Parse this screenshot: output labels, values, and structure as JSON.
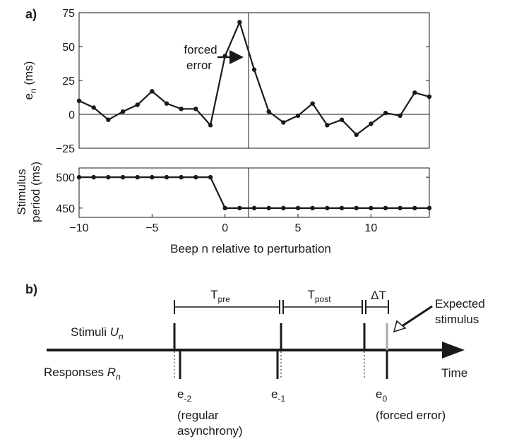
{
  "panel_a": {
    "label": "a)",
    "annotation_line1": "forced",
    "annotation_line2": "error"
  },
  "panel_b": {
    "label": "b)",
    "t_pre": "T",
    "t_pre_sub": "pre",
    "t_post": "T",
    "t_post_sub": "post",
    "delta_t": "ΔT",
    "expected_line1": "Expected",
    "expected_line2": "stimulus",
    "stimuli_label": "Stimuli ",
    "stimuli_var": "U",
    "stimuli_sub": "n",
    "responses_label": "Responses ",
    "responses_var": "R",
    "responses_sub": "n",
    "time_label": "Time",
    "e_minus2": "e",
    "e_minus2_sub": "-2",
    "e_minus2_note1": "(regular",
    "e_minus2_note2": "asynchrony)",
    "e_minus1": "e",
    "e_minus1_sub": "-1",
    "e_zero": "e",
    "e_zero_sub": "0",
    "e_zero_note": "(forced error)"
  },
  "chart_data": [
    {
      "type": "line",
      "title": "",
      "xlabel": "",
      "ylabel": "e",
      "ylabel_sub": "n",
      "ylabel_unit": " (ms)",
      "xlim": [
        -10,
        14
      ],
      "ylim": [
        -25,
        75
      ],
      "yticks": [
        -25,
        0,
        25,
        50,
        75
      ],
      "ytick_labels": [
        "−25",
        "0",
        "25",
        "50",
        "75"
      ],
      "x": [
        -10,
        -9,
        -8,
        -7,
        -6,
        -5,
        -4,
        -3,
        -2,
        -1,
        0,
        1,
        2,
        3,
        4,
        5,
        6,
        7,
        8,
        9,
        10,
        11,
        12,
        13,
        14
      ],
      "series": [
        {
          "values": [
            10,
            5,
            -4,
            2,
            7,
            17,
            8,
            4,
            4,
            -8,
            43,
            68,
            33,
            2,
            -6,
            -1,
            8,
            -8,
            -4,
            -15,
            -7,
            1,
            -1,
            16,
            13
          ]
        }
      ],
      "reference_lines": {
        "y": 0,
        "x": 0
      }
    },
    {
      "type": "line",
      "title": "",
      "xlabel": "Beep n relative to perturbation",
      "ylabel_line1": "Stimulus",
      "ylabel_line2": "period (ms)",
      "xlim": [
        -10,
        14
      ],
      "ylim": [
        435,
        515
      ],
      "yticks": [
        450,
        500
      ],
      "ytick_labels": [
        "450",
        "500"
      ],
      "xticks": [
        -10,
        -5,
        0,
        5,
        10
      ],
      "xtick_labels": [
        "−10",
        "−5",
        "0",
        "5",
        "10"
      ],
      "x": [
        -10,
        -9,
        -8,
        -7,
        -6,
        -5,
        -4,
        -3,
        -2,
        -1,
        0,
        1,
        2,
        3,
        4,
        5,
        6,
        7,
        8,
        9,
        10,
        11,
        12,
        13,
        14
      ],
      "series": [
        {
          "values": [
            500,
            500,
            500,
            500,
            500,
            500,
            500,
            500,
            500,
            500,
            450,
            450,
            450,
            450,
            450,
            450,
            450,
            450,
            450,
            450,
            450,
            450,
            450,
            450,
            450
          ]
        }
      ],
      "reference_lines": {
        "x": 0
      }
    }
  ]
}
